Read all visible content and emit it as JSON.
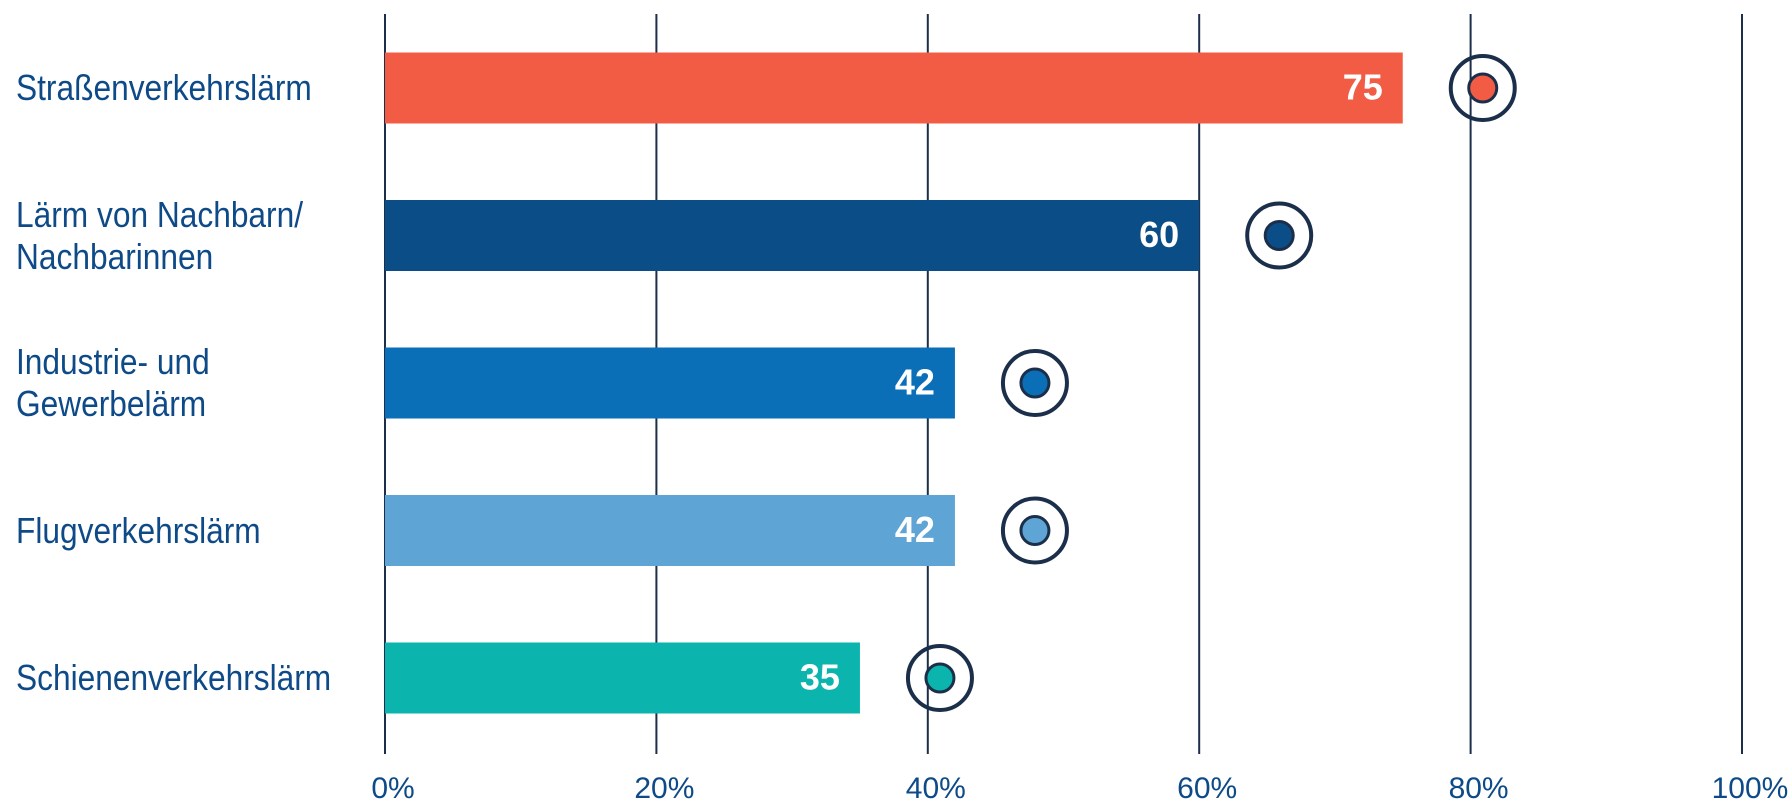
{
  "chart_data": {
    "type": "bar",
    "orientation": "horizontal",
    "categories": [
      "Straßenverkehrslärm",
      "Lärm von Nachbarn/\nNachbarinnen",
      "Industrie- und\nGewerbelärm",
      "Flugverkehrslärm",
      "Schienenverkehrslärm"
    ],
    "values": [
      75,
      60,
      42,
      42,
      35
    ],
    "colors": [
      "#f25c45",
      "#0a4d87",
      "#0b6fb8",
      "#5ea5d6",
      "#0bb5ae"
    ],
    "xlim": [
      0,
      100
    ],
    "xticks": [
      {
        "value": 0,
        "label": "0%"
      },
      {
        "value": 20,
        "label": "20%"
      },
      {
        "value": 40,
        "label": "40%"
      },
      {
        "value": 60,
        "label": "60%"
      },
      {
        "value": 80,
        "label": "80%"
      },
      {
        "value": 100,
        "label": "100%"
      }
    ],
    "grid": true
  }
}
